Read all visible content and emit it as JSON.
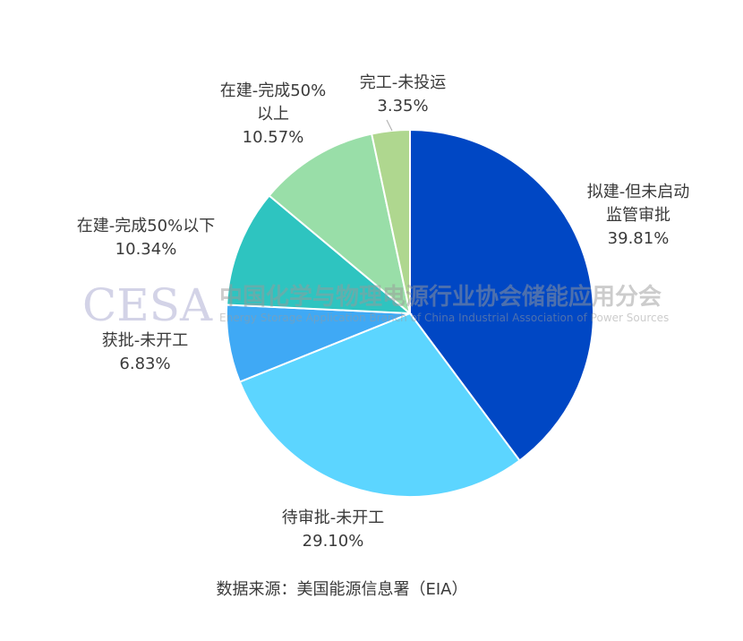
{
  "chart_data": {
    "type": "pie",
    "start_angle": "top, clockwise",
    "slices": [
      {
        "label": "拟建-但未启动监管审批",
        "label_lines": [
          "拟建-但未启动",
          "监管审批"
        ],
        "value": 39.81,
        "value_label": "39.81%",
        "color": "#0047c4"
      },
      {
        "label": "待审批-未开工",
        "label_lines": [
          "待审批-未开工"
        ],
        "value": 29.1,
        "value_label": "29.10%",
        "color": "#5cd5ff"
      },
      {
        "label": "获批-未开工",
        "label_lines": [
          "获批-未开工"
        ],
        "value": 6.83,
        "value_label": "6.83%",
        "color": "#3fa9f5"
      },
      {
        "label": "在建-完成50%以下",
        "label_lines": [
          "在建-完成50%以下"
        ],
        "value": 10.34,
        "value_label": "10.34%",
        "color": "#2ec4c0"
      },
      {
        "label": "在建-完成50%以上",
        "label_lines": [
          "在建-完成50%",
          "以上"
        ],
        "value": 10.57,
        "value_label": "10.57%",
        "color": "#99dea8"
      },
      {
        "label": "完工-未投运",
        "label_lines": [
          "完工-未投运"
        ],
        "value": 3.35,
        "value_label": "3.35%",
        "color": "#afd78f"
      }
    ],
    "source": "数据来源：美国能源信息署（EIA）"
  },
  "watermark": {
    "logo": "CESA",
    "name_cn": "中国化学与物理电源行业协会储能应用分会",
    "name_en": "Energy Storage Application Branch of China Industrial Association of Power Sources"
  }
}
